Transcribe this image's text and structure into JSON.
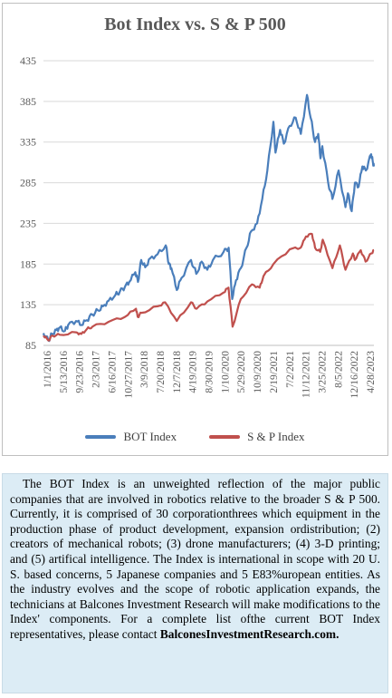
{
  "chart_data": {
    "type": "line",
    "title": "Bot Index vs. S & P 500",
    "xlabel": "",
    "ylabel": "",
    "ylim": [
      85,
      435
    ],
    "yticks": [
      85,
      135,
      185,
      235,
      285,
      335,
      385,
      435
    ],
    "xticks": [
      "1/1/2016",
      "5/13/2016",
      "9/23/2016",
      "2/3/2017",
      "6/16/2017",
      "10/27/2017",
      "3/9/2018",
      "7/20/2018",
      "12/7/2018",
      "4/19/2019",
      "8/30/2019",
      "1/10/2020",
      "5/29/2020",
      "10/9/2020",
      "2/19/2021",
      "7/2/2021",
      "11/12/2021",
      "3/25/2022",
      "8/5/2022",
      "12/16/2022",
      "4/28/2023"
    ],
    "grid": true,
    "legend": "bottom",
    "series": [
      {
        "name": "BOT Index",
        "color": "#4a7ebb",
        "points": [
          [
            "2016-01-01",
            100
          ],
          [
            "2016-02-10",
            91
          ],
          [
            "2016-03-10",
            99
          ],
          [
            "2016-04-15",
            104
          ],
          [
            "2016-05-13",
            107
          ],
          [
            "2016-06-25",
            103
          ],
          [
            "2016-07-20",
            110
          ],
          [
            "2016-09-23",
            115
          ],
          [
            "2016-11-05",
            110
          ],
          [
            "2016-12-20",
            116
          ],
          [
            "2017-02-03",
            123
          ],
          [
            "2017-03-20",
            128
          ],
          [
            "2017-05-01",
            133
          ],
          [
            "2017-06-16",
            140
          ],
          [
            "2017-08-10",
            147
          ],
          [
            "2017-09-15",
            151
          ],
          [
            "2017-10-27",
            157
          ],
          [
            "2017-12-01",
            163
          ],
          [
            "2018-01-20",
            175
          ],
          [
            "2018-02-10",
            163
          ],
          [
            "2018-03-09",
            190
          ],
          [
            "2018-04-10",
            181
          ],
          [
            "2018-05-20",
            192
          ],
          [
            "2018-07-20",
            197
          ],
          [
            "2018-09-25",
            208
          ],
          [
            "2018-10-20",
            185
          ],
          [
            "2018-11-10",
            180
          ],
          [
            "2018-12-24",
            153
          ],
          [
            "2019-02-01",
            168
          ],
          [
            "2019-04-19",
            190
          ],
          [
            "2019-06-01",
            173
          ],
          [
            "2019-07-15",
            188
          ],
          [
            "2019-08-30",
            178
          ],
          [
            "2019-10-15",
            190
          ],
          [
            "2020-01-10",
            200
          ],
          [
            "2020-02-20",
            205
          ],
          [
            "2020-03-20",
            142
          ],
          [
            "2020-04-20",
            165
          ],
          [
            "2020-05-29",
            180
          ],
          [
            "2020-07-15",
            205
          ],
          [
            "2020-08-20",
            225
          ],
          [
            "2020-10-09",
            235
          ],
          [
            "2020-11-20",
            265
          ],
          [
            "2021-01-01",
            300
          ],
          [
            "2021-02-19",
            360
          ],
          [
            "2021-03-08",
            322
          ],
          [
            "2021-04-15",
            350
          ],
          [
            "2021-05-15",
            333
          ],
          [
            "2021-07-02",
            355
          ],
          [
            "2021-08-20",
            365
          ],
          [
            "2021-10-01",
            345
          ],
          [
            "2021-11-20",
            393
          ],
          [
            "2021-12-20",
            365
          ],
          [
            "2022-01-25",
            335
          ],
          [
            "2022-02-20",
            345
          ],
          [
            "2022-03-10",
            315
          ],
          [
            "2022-03-25",
            330
          ],
          [
            "2022-05-12",
            285
          ],
          [
            "2022-06-16",
            265
          ],
          [
            "2022-08-05",
            300
          ],
          [
            "2022-09-30",
            255
          ],
          [
            "2022-10-20",
            272
          ],
          [
            "2022-11-20",
            250
          ],
          [
            "2022-12-16",
            285
          ],
          [
            "2023-01-15",
            280
          ],
          [
            "2023-02-15",
            305
          ],
          [
            "2023-03-15",
            300
          ],
          [
            "2023-04-28",
            320
          ],
          [
            "2023-05-10",
            312
          ],
          [
            "2023-05-20",
            305
          ]
        ]
      },
      {
        "name": "S & P Index",
        "color": "#c0504d",
        "points": [
          [
            "2016-01-01",
            97
          ],
          [
            "2016-02-10",
            91
          ],
          [
            "2016-03-15",
            97
          ],
          [
            "2016-05-13",
            98
          ],
          [
            "2016-09-23",
            101
          ],
          [
            "2016-11-05",
            99
          ],
          [
            "2016-12-20",
            105
          ],
          [
            "2017-02-03",
            108
          ],
          [
            "2017-06-16",
            114
          ],
          [
            "2017-10-27",
            120
          ],
          [
            "2018-01-25",
            130
          ],
          [
            "2018-02-08",
            120
          ],
          [
            "2018-03-09",
            125
          ],
          [
            "2018-07-20",
            133
          ],
          [
            "2018-09-20",
            138
          ],
          [
            "2018-12-24",
            115
          ],
          [
            "2019-04-19",
            138
          ],
          [
            "2019-06-03",
            130
          ],
          [
            "2019-08-30",
            139
          ],
          [
            "2020-01-10",
            150
          ],
          [
            "2020-02-19",
            156
          ],
          [
            "2020-03-23",
            108
          ],
          [
            "2020-05-29",
            142
          ],
          [
            "2020-08-28",
            160
          ],
          [
            "2020-10-30",
            156
          ],
          [
            "2020-11-30",
            170
          ],
          [
            "2021-02-19",
            185
          ],
          [
            "2021-07-02",
            203
          ],
          [
            "2021-09-30",
            205
          ],
          [
            "2021-11-12",
            219
          ],
          [
            "2021-12-31",
            222
          ],
          [
            "2022-01-25",
            205
          ],
          [
            "2022-03-08",
            200
          ],
          [
            "2022-03-29",
            215
          ],
          [
            "2022-06-16",
            180
          ],
          [
            "2022-08-15",
            208
          ],
          [
            "2022-09-30",
            178
          ],
          [
            "2022-11-30",
            198
          ],
          [
            "2022-12-16",
            190
          ],
          [
            "2023-02-02",
            202
          ],
          [
            "2023-03-13",
            188
          ],
          [
            "2023-04-28",
            198
          ],
          [
            "2023-05-20",
            202
          ]
        ]
      }
    ]
  },
  "note": {
    "text": "The BOT Index is an unweighted reflection of the major public companies that are involved in robotics relative to the broader S & P 500. Currently, it is comprised of 30 corporationthrees which equipment in the production phase of product development, expansion ordistribution; (2) creators of mechanical robots; (3) drone manufacturers; (4) 3-D printing; and (5) artifical intelligence. The Index is international in scope with 20 U. S. based concerns, 5 Japanese companies and 5 E83%uropean entities. As the industry evolves and the scope of robotic application expands, the technicians at Balcones Investment Research will make modifications to the Index' components. For a  complete list ofthe current BOT Index representatives, please contact",
    "contact": "BalconesInvestmentResearch.com."
  }
}
